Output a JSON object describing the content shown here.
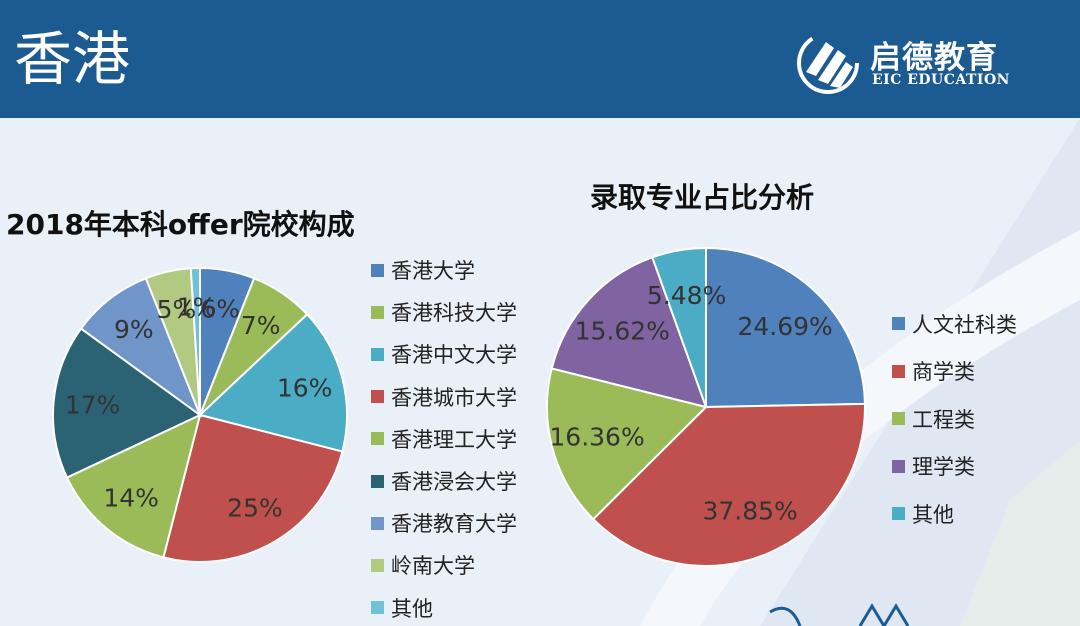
{
  "header": {
    "title": "香港",
    "brand_cn": "启德教育",
    "brand_en": "EIC EDUCATION"
  },
  "colors": {
    "header_bg": "#1b5b91",
    "background": "#eaf0f7"
  },
  "chart_data": [
    {
      "type": "pie",
      "title": "2018年本科offer院校构成",
      "categories": [
        "香港大学",
        "香港科技大学",
        "香港中文大学",
        "香港城市大学",
        "香港理工大学",
        "香港浸会大学",
        "香港教育大学",
        "岭南大学",
        "其他"
      ],
      "values": [
        6,
        7,
        16,
        25,
        14,
        17,
        9,
        5,
        1
      ],
      "labels": [
        "6%",
        "7%",
        "16%",
        "25%",
        "14%",
        "17%",
        "9%",
        "5%",
        "1%"
      ],
      "colors": [
        "#4f81bd",
        "#9bbb59",
        "#4bacc6",
        "#c0504d",
        "#9bbb59",
        "#2b6374",
        "#7095c9",
        "#b1c980",
        "#6fc1d6"
      ],
      "legend_position": "right"
    },
    {
      "type": "pie",
      "title": "录取专业占比分析",
      "categories": [
        "人文社科类",
        "商学类",
        "工程类",
        "理学类",
        "其他"
      ],
      "values": [
        24.69,
        37.85,
        16.36,
        15.62,
        5.48
      ],
      "labels": [
        "24.69%",
        "37.85%",
        "16.36%",
        "15.62%",
        "5.48%"
      ],
      "colors": [
        "#4f81bd",
        "#c0504d",
        "#9bbb59",
        "#8064a2",
        "#4bacc6"
      ],
      "legend_position": "right"
    }
  ]
}
